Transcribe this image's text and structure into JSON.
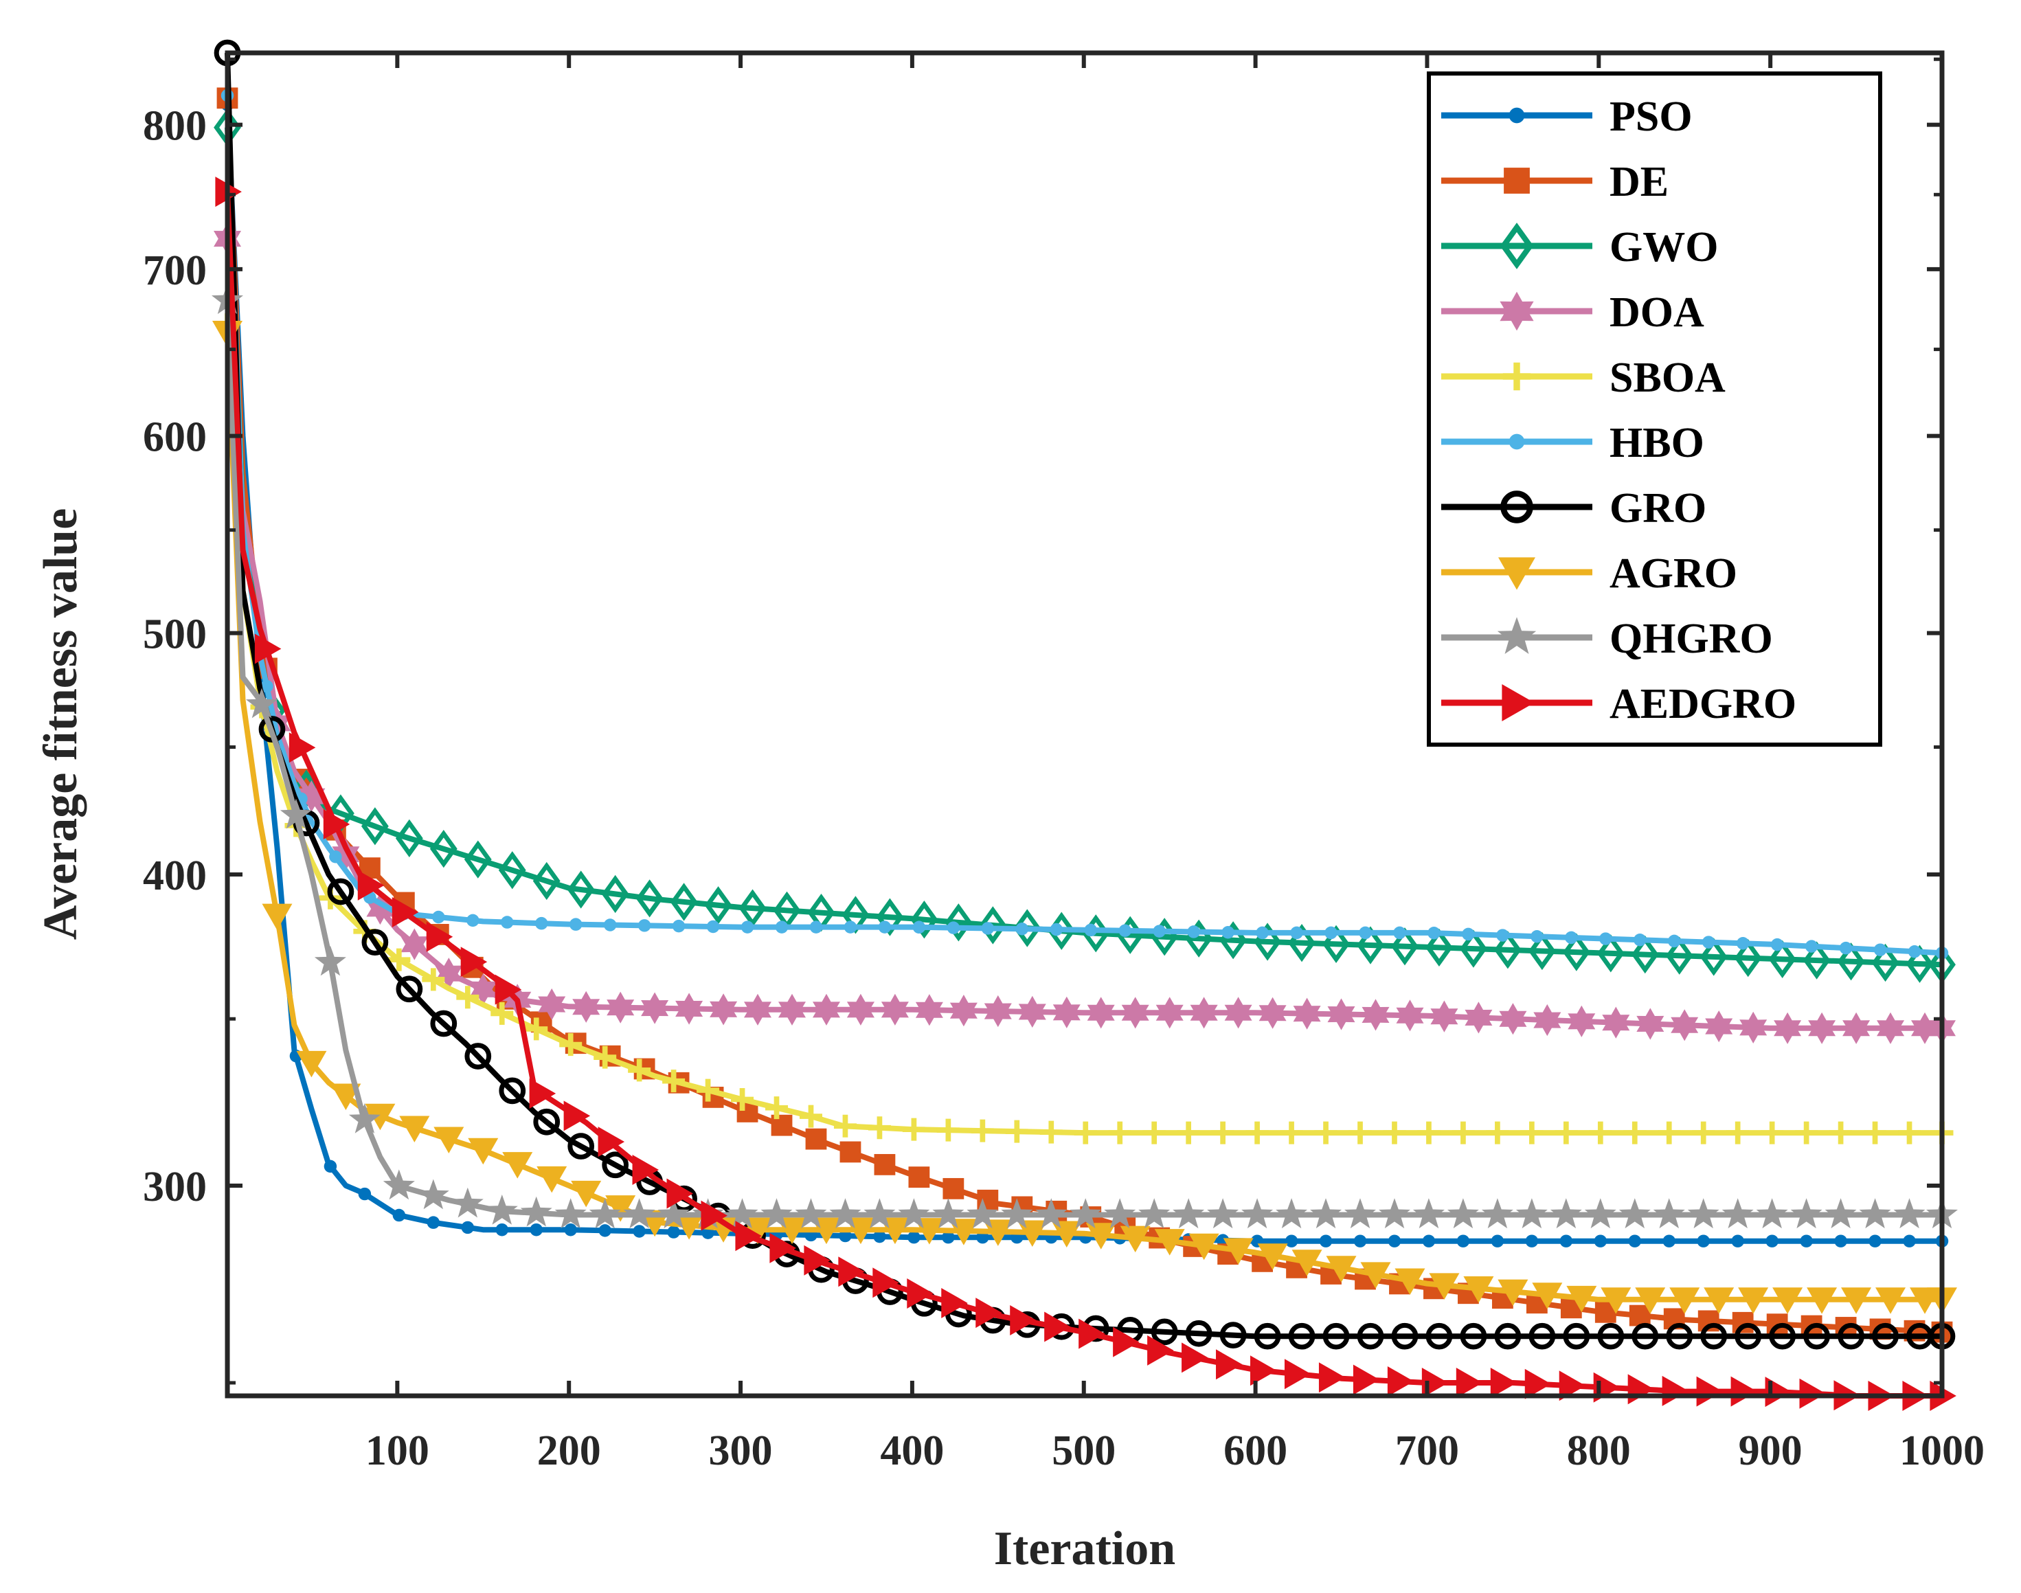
{
  "chart_data": {
    "type": "line",
    "title": "",
    "xlabel": "Iteration",
    "ylabel": "Average fitness value",
    "xlim": [
      1,
      1000
    ],
    "ylim": [
      247,
      855
    ],
    "y_scale": "log",
    "grid": false,
    "legend_position": "top-right",
    "x_ticks": [
      100,
      200,
      300,
      400,
      500,
      600,
      700,
      800,
      900,
      1000
    ],
    "x_tick_labels": [
      "100",
      "200",
      "300",
      "400",
      "500",
      "600",
      "700",
      "800",
      "900",
      "1000"
    ],
    "y_ticks": [
      300,
      400,
      500,
      600,
      700,
      800
    ],
    "y_tick_labels": [
      "300",
      "400",
      "500",
      "600",
      "700",
      "800"
    ],
    "series": [
      {
        "name": "PSO",
        "color": "#0072BD",
        "marker": "dot",
        "x": [
          1,
          10,
          20,
          30,
          40,
          50,
          60,
          70,
          80,
          100,
          120,
          150,
          200,
          300,
          400,
          500,
          600,
          700,
          800,
          900,
          1000
        ],
        "y": [
          815,
          600,
          480,
          410,
          340,
          322,
          306,
          300,
          298,
          292,
          290,
          288,
          288,
          287,
          286,
          286,
          285,
          285,
          285,
          285,
          285
        ]
      },
      {
        "name": "DE",
        "color": "#D95319",
        "marker": "square",
        "x": [
          1,
          10,
          20,
          30,
          40,
          50,
          60,
          70,
          80,
          100,
          130,
          160,
          200,
          250,
          300,
          350,
          400,
          450,
          500,
          550,
          600,
          650,
          700,
          750,
          800,
          850,
          900,
          950,
          1000
        ],
        "y": [
          820,
          580,
          500,
          460,
          440,
          432,
          420,
          412,
          405,
          392,
          375,
          358,
          343,
          333,
          322,
          312,
          303,
          295,
          292,
          285,
          280,
          276,
          273,
          270,
          267,
          265,
          264,
          263,
          262
        ]
      },
      {
        "name": "GWO",
        "color": "#0A9E73",
        "marker": "diamond",
        "x": [
          1,
          10,
          20,
          30,
          40,
          50,
          60,
          80,
          100,
          150,
          200,
          250,
          300,
          400,
          500,
          600,
          700,
          800,
          900,
          1000
        ],
        "y": [
          798,
          560,
          490,
          455,
          440,
          430,
          425,
          420,
          415,
          405,
          395,
          391,
          388,
          384,
          379,
          376,
          374,
          372,
          370,
          368
        ]
      },
      {
        "name": "DOA",
        "color": "#CC79A7",
        "marker": "hexagram",
        "x": [
          1,
          10,
          20,
          30,
          40,
          60,
          80,
          100,
          130,
          160,
          200,
          300,
          400,
          500,
          600,
          700,
          800,
          900,
          1000
        ],
        "y": [
          720,
          560,
          515,
          460,
          440,
          420,
          395,
          380,
          365,
          357,
          354,
          353,
          353,
          352,
          352,
          351,
          349,
          347,
          347
        ]
      },
      {
        "name": "SBOA",
        "color": "#EDE04A",
        "marker": "plus",
        "x": [
          1,
          10,
          20,
          30,
          40,
          50,
          60,
          80,
          100,
          130,
          160,
          200,
          250,
          300,
          340,
          360,
          400,
          500,
          600,
          700,
          800,
          900,
          1000
        ],
        "y": [
          665,
          520,
          470,
          440,
          420,
          405,
          392,
          380,
          370,
          360,
          352,
          342,
          332,
          325,
          320,
          317,
          316,
          315,
          315,
          315,
          315,
          315,
          315
        ]
      },
      {
        "name": "HBO",
        "color": "#4DB3E6",
        "marker": "dot",
        "x": [
          1,
          10,
          20,
          30,
          40,
          50,
          60,
          80,
          100,
          150,
          200,
          300,
          400,
          500,
          600,
          700,
          800,
          900,
          1000
        ],
        "y": [
          822,
          550,
          490,
          455,
          435,
          420,
          410,
          393,
          386,
          383,
          382,
          381,
          381,
          380,
          379,
          379,
          377,
          375,
          372
        ]
      },
      {
        "name": "GRO",
        "color": "#000000",
        "marker": "circle",
        "x": [
          1,
          10,
          20,
          30,
          40,
          60,
          80,
          100,
          120,
          140,
          160,
          180,
          200,
          230,
          260,
          290,
          320,
          350,
          380,
          400,
          430,
          460,
          500,
          550,
          600,
          650,
          700,
          800,
          900,
          1000
        ],
        "y": [
          855,
          520,
          475,
          450,
          430,
          400,
          382,
          364,
          352,
          342,
          331,
          321,
          313,
          305,
          298,
          291,
          283,
          277,
          273,
          270,
          266,
          264,
          263,
          262,
          261,
          261,
          261,
          261,
          261,
          261
        ]
      },
      {
        "name": "AGRO",
        "color": "#EDB120",
        "marker": "triangle-down",
        "x": [
          1,
          10,
          20,
          30,
          40,
          50,
          60,
          80,
          100,
          150,
          200,
          250,
          300,
          400,
          500,
          550,
          600,
          650,
          700,
          800,
          900,
          1000
        ],
        "y": [
          660,
          470,
          420,
          385,
          348,
          336,
          330,
          322,
          318,
          310,
          300,
          290,
          288,
          288,
          287,
          285,
          282,
          278,
          274,
          270,
          270,
          270
        ]
      },
      {
        "name": "QHGRO",
        "color": "#999999",
        "marker": "pentagram",
        "x": [
          1,
          10,
          20,
          30,
          40,
          50,
          60,
          70,
          80,
          90,
          100,
          130,
          160,
          200,
          300,
          400,
          500,
          600,
          700,
          800,
          900,
          1000
        ],
        "y": [
          680,
          480,
          470,
          450,
          425,
          400,
          372,
          340,
          320,
          308,
          300,
          296,
          293,
          292,
          292,
          292,
          292,
          292,
          292,
          292,
          292,
          292
        ]
      },
      {
        "name": "AEDGRO",
        "color": "#E0101A",
        "marker": "triangle-right",
        "x": [
          1,
          10,
          20,
          40,
          60,
          70,
          80,
          100,
          130,
          160,
          170,
          180,
          210,
          250,
          300,
          350,
          400,
          450,
          500,
          550,
          600,
          650,
          700,
          750,
          800,
          850,
          900,
          950,
          1000
        ],
        "y": [
          752,
          540,
          502,
          456,
          425,
          410,
          398,
          388,
          375,
          362,
          356,
          328,
          318,
          302,
          287,
          279,
          272,
          266,
          262,
          257,
          253,
          251,
          250,
          250,
          249,
          248,
          248,
          247,
          247
        ]
      }
    ]
  }
}
